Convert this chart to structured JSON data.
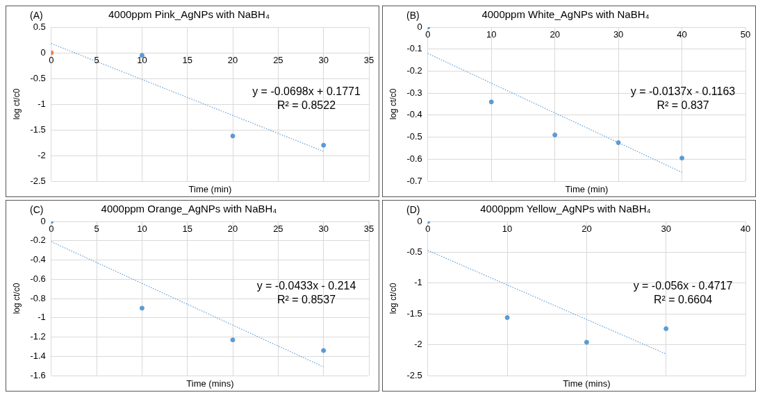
{
  "chart_data": [
    {
      "type": "scatter",
      "title": "4000ppm Pink_AgNPs with NaBH₄",
      "xlabel": "Time (min)",
      "ylabel": "log ct/c0",
      "annotations": [
        "(A)",
        "y = -0.0698x + 0.1771",
        "R² = 0.8522"
      ],
      "x": [
        0,
        10,
        20,
        30
      ],
      "xlim": [
        0,
        35
      ],
      "xticks": [
        0,
        5,
        10,
        15,
        20,
        25,
        30,
        35
      ],
      "ylim": [
        -2.5,
        0.5
      ],
      "yticks": [
        -2.5,
        -2,
        -1.5,
        -1,
        -0.5,
        0,
        0.5
      ],
      "grid": true,
      "series": [
        {
          "type": "scatter",
          "color": "#5b9bd5",
          "colors": [
            "#ed7d31",
            "#5b9bd5",
            "#5b9bd5",
            "#5b9bd5"
          ],
          "values": [
            0,
            -0.05,
            -1.62,
            -1.8
          ],
          "marker": "circle"
        },
        {
          "type": "line",
          "color": "#5b9bd5",
          "x": [
            0,
            30
          ],
          "values": [
            0.18,
            -1.92
          ],
          "marker": "none",
          "line_style": "dotted"
        }
      ]
    },
    {
      "type": "scatter",
      "title": "4000ppm White_AgNPs with NaBH₄",
      "xlabel": "Time (min)",
      "ylabel": "log ct/c0",
      "annotations": [
        "(B)",
        "y = -0.0137x - 0.1163",
        "R² = 0.837"
      ],
      "x": [
        0,
        10,
        20,
        30,
        40
      ],
      "xlim": [
        0,
        50
      ],
      "xticks": [
        0,
        10,
        20,
        30,
        40,
        50
      ],
      "ylim": [
        -0.7,
        0
      ],
      "yticks": [
        -0.7,
        -0.6,
        -0.5,
        -0.4,
        -0.3,
        -0.2,
        -0.1,
        0
      ],
      "grid": true,
      "series": [
        {
          "type": "scatter",
          "color": "#5b9bd5",
          "values": [
            0,
            -0.34,
            -0.49,
            -0.525,
            -0.595
          ],
          "marker": "circle"
        },
        {
          "type": "line",
          "color": "#5b9bd5",
          "x": [
            0,
            40
          ],
          "values": [
            -0.12,
            -0.66
          ],
          "marker": "none",
          "line_style": "dotted"
        }
      ]
    },
    {
      "type": "scatter",
      "title": "4000ppm Orange_AgNPs with NaBH₄",
      "xlabel": "Time (mins)",
      "ylabel": "log ct/c0",
      "annotations": [
        "(C)",
        "y = -0.0433x - 0.214",
        "R² = 0.8537"
      ],
      "x": [
        0,
        10,
        20,
        30
      ],
      "xlim": [
        0,
        35
      ],
      "xticks": [
        0,
        5,
        10,
        15,
        20,
        25,
        30,
        35
      ],
      "ylim": [
        -1.6,
        0
      ],
      "yticks": [
        -1.6,
        -1.4,
        -1.2,
        -1,
        -0.8,
        -0.6,
        -0.4,
        -0.2,
        0
      ],
      "grid": true,
      "series": [
        {
          "type": "scatter",
          "color": "#5b9bd5",
          "values": [
            0,
            -0.9,
            -1.23,
            -1.34
          ],
          "marker": "circle"
        },
        {
          "type": "line",
          "color": "#5b9bd5",
          "x": [
            0,
            30
          ],
          "values": [
            -0.21,
            -1.51
          ],
          "marker": "none",
          "line_style": "dotted"
        }
      ]
    },
    {
      "type": "scatter",
      "title": "4000ppm Yellow_AgNPs with NaBH₄",
      "xlabel": "Time (mins)",
      "ylabel": "log ct/c0",
      "annotations": [
        "(D)",
        "y = -0.056x - 0.4717",
        "R² = 0.6604"
      ],
      "x": [
        0,
        10,
        20,
        30
      ],
      "xlim": [
        0,
        40
      ],
      "xticks": [
        0,
        10,
        20,
        30,
        40
      ],
      "ylim": [
        -2.5,
        0
      ],
      "yticks": [
        -2.5,
        -2,
        -1.5,
        -1,
        -0.5,
        0
      ],
      "grid": true,
      "series": [
        {
          "type": "scatter",
          "color": "#5b9bd5",
          "values": [
            0,
            -1.56,
            -1.96,
            -1.74
          ],
          "marker": "circle"
        },
        {
          "type": "line",
          "color": "#5b9bd5",
          "x": [
            0,
            30
          ],
          "values": [
            -0.47,
            -2.15
          ],
          "marker": "none",
          "line_style": "dotted"
        }
      ]
    }
  ]
}
